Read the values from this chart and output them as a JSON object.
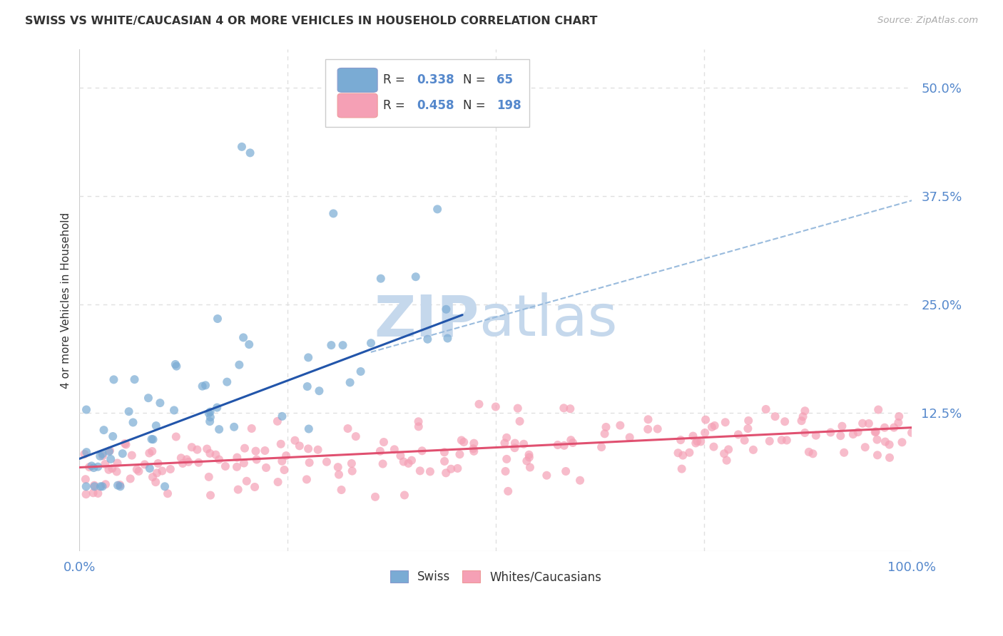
{
  "title": "SWISS VS WHITE/CAUCASIAN 4 OR MORE VEHICLES IN HOUSEHOLD CORRELATION CHART",
  "source": "Source: ZipAtlas.com",
  "ylabel": "4 or more Vehicles in Household",
  "ytick_labels": [
    "",
    "12.5%",
    "25.0%",
    "37.5%",
    "50.0%"
  ],
  "ytick_values": [
    0.0,
    0.125,
    0.25,
    0.375,
    0.5
  ],
  "xlim": [
    0.0,
    1.0
  ],
  "ylim": [
    -0.035,
    0.545
  ],
  "legend_swiss_R": "0.338",
  "legend_swiss_N": "65",
  "legend_white_R": "0.458",
  "legend_white_N": "198",
  "swiss_color": "#7aabd4",
  "white_color": "#f5a0b5",
  "swiss_line_color": "#2255aa",
  "white_line_color": "#e05070",
  "dashed_line_color": "#99bbdd",
  "watermark_zip_color": "#c5d8ec",
  "watermark_atlas_color": "#c5d8ec",
  "background_color": "#ffffff",
  "grid_color": "#e0e0e0",
  "axis_label_color": "#5588cc",
  "text_color": "#333333",
  "source_color": "#aaaaaa",
  "swiss_line_x0": 0.0,
  "swiss_line_y0": 0.072,
  "swiss_line_x1": 0.46,
  "swiss_line_y1": 0.238,
  "white_line_x0": 0.0,
  "white_line_y0": 0.062,
  "white_line_x1": 1.0,
  "white_line_y1": 0.108,
  "dashed_line_x0": 0.35,
  "dashed_line_y0": 0.195,
  "dashed_line_x1": 1.0,
  "dashed_line_y1": 0.37
}
